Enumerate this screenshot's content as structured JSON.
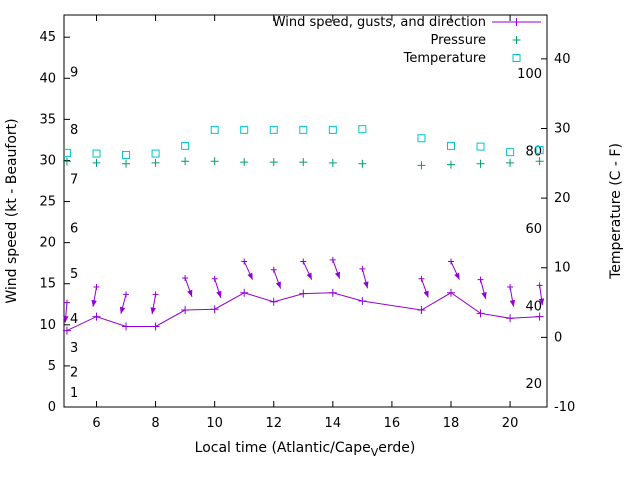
{
  "legend": {
    "entries": [
      {
        "label": "Wind speed, gusts, and direction"
      },
      {
        "label": "Pressure"
      },
      {
        "label": "Temperature"
      }
    ]
  },
  "chart_data": {
    "type": "line",
    "title": "",
    "x_label": "Local time (Atlantic/CapeVerde)",
    "x_label_parts": {
      "pre": "Local time (Atlantic/Cape",
      "sub": "V",
      "post": "erde)"
    },
    "x_axis": {
      "range": [
        4.9,
        21.25
      ],
      "ticks": [
        6,
        8,
        10,
        12,
        14,
        16,
        18,
        20
      ]
    },
    "y_left": {
      "label": "Wind speed (kt - Beaufort)",
      "range": [
        0,
        47.7
      ],
      "ticks": [
        0,
        5,
        10,
        15,
        20,
        25,
        30,
        35,
        40,
        45
      ]
    },
    "y_right": {
      "label": "Temperature (C - F)",
      "range": [
        -10,
        46.3
      ],
      "ticks": [
        -10,
        0,
        10,
        20,
        30,
        40
      ]
    },
    "beaufort_scale": {
      "labels": [
        1,
        2,
        3,
        4,
        5,
        6,
        7,
        8,
        9
      ],
      "kt_positions": [
        1.7,
        4.2,
        7.2,
        10.7,
        16.2,
        21.7,
        27.7,
        33.7,
        40.7
      ]
    },
    "fahrenheit_scale": {
      "labels": [
        20,
        40,
        60,
        80,
        100
      ],
      "c_positions": [
        -6.7,
        4.4,
        15.6,
        26.7,
        37.8
      ]
    },
    "hours": [
      5,
      6,
      7,
      8,
      9,
      10,
      11,
      12,
      13,
      14,
      15,
      17,
      18,
      19,
      20,
      21
    ],
    "series": [
      {
        "name": "Wind speed, gusts, and direction",
        "type": "line+points+vectors",
        "color": "#9400d3",
        "axis": "left",
        "speed_kt": [
          9.3,
          11.0,
          9.8,
          9.8,
          11.8,
          11.9,
          13.9,
          12.8,
          13.8,
          13.9,
          12.9,
          11.8,
          13.9,
          11.4,
          10.8,
          11.0
        ],
        "gust_kt": [
          12.7,
          14.6,
          13.7,
          13.7,
          15.7,
          15.6,
          17.7,
          16.7,
          17.7,
          17.9,
          16.8,
          15.6,
          17.7,
          15.5,
          14.6,
          14.8
        ],
        "dir_deg": [
          185,
          190,
          195,
          190,
          160,
          162,
          155,
          160,
          155,
          160,
          165,
          160,
          155,
          165,
          170,
          172
        ]
      },
      {
        "name": "Pressure",
        "type": "points",
        "marker": "plus",
        "color": "#009e73",
        "axis": "left",
        "values": [
          29.9,
          29.7,
          29.6,
          29.7,
          29.9,
          29.9,
          29.8,
          29.8,
          29.8,
          29.7,
          29.6,
          29.4,
          29.5,
          29.6,
          29.7,
          29.9
        ]
      },
      {
        "name": "Temperature",
        "type": "points",
        "marker": "square",
        "color": "#00c5cd",
        "axis": "right",
        "values_c": [
          26.5,
          26.4,
          26.2,
          26.4,
          27.5,
          29.8,
          29.8,
          29.8,
          29.8,
          29.8,
          29.9,
          28.6,
          27.5,
          27.4,
          26.6,
          26.9
        ]
      }
    ]
  }
}
